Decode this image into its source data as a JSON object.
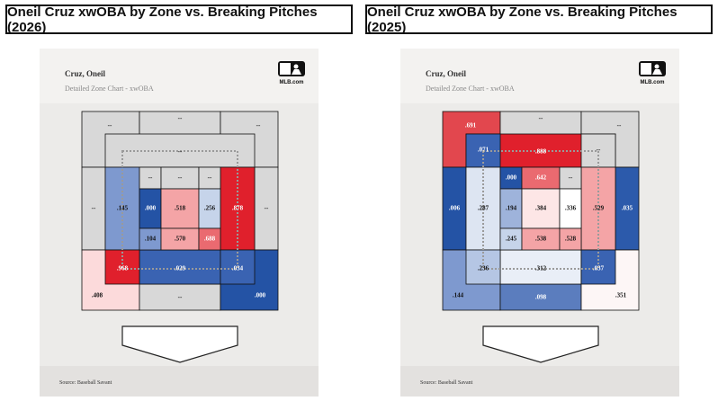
{
  "source": "Source: Baseball Savant",
  "logo_text": "MLB.com",
  "charts": [
    {
      "title": "Oneil Cruz xwOBA by Zone vs. Breaking Pitches (2026)",
      "player": "Cruz, Oneil",
      "subtitle": "Detailed Zone Chart - xwOBA",
      "cells": [
        {
          "zone": "tl-outer",
          "value": "--",
          "color": "#d8d8d8"
        },
        {
          "zone": "top-outer",
          "value": "--",
          "color": "#d8d8d8"
        },
        {
          "zone": "tr-outer",
          "value": "--",
          "color": "#d8d8d8"
        },
        {
          "zone": "left-outer",
          "value": "--",
          "color": "#d8d8d8"
        },
        {
          "zone": "right-outer",
          "value": "--",
          "color": "#d8d8d8"
        },
        {
          "zone": "bl-outer",
          "value": ".408",
          "color": "#fcdadb"
        },
        {
          "zone": "bottom-outer",
          "value": "--",
          "color": "#d8d8d8"
        },
        {
          "zone": "br-outer",
          "value": ".000",
          "color": "#2453a5"
        },
        {
          "zone": "shadow-top",
          "value": "--",
          "color": "#d8d8d8"
        },
        {
          "zone": "shadow-left",
          "value": ".145",
          "color": "#7e99cf"
        },
        {
          "zone": "shadow-right",
          "value": ".878",
          "color": "#e0202c"
        },
        {
          "zone": "shadow-bottom",
          "value": ".029",
          "color": "#3a63b2"
        },
        {
          "zone": "shadow-bl",
          "value": ".968",
          "color": "#e0202c"
        },
        {
          "zone": "shadow-br",
          "value": ".034",
          "color": "#3a63b2"
        },
        {
          "zone": "heart-1",
          "value": "--",
          "color": "#d8d8d8"
        },
        {
          "zone": "heart-2",
          "value": "--",
          "color": "#d8d8d8"
        },
        {
          "zone": "heart-3",
          "value": "--",
          "color": "#d8d8d8"
        },
        {
          "zone": "heart-4",
          "value": ".000",
          "color": "#2453a5"
        },
        {
          "zone": "heart-5",
          "value": ".518",
          "color": "#f4a4a6"
        },
        {
          "zone": "heart-6",
          "value": ".256",
          "color": "#c6d4ea"
        },
        {
          "zone": "heart-7",
          "value": ".104",
          "color": "#7e99cf"
        },
        {
          "zone": "heart-8",
          "value": ".570",
          "color": "#f4a4a6"
        },
        {
          "zone": "heart-9",
          "value": ".688",
          "color": "#ea6a70"
        }
      ]
    },
    {
      "title": "Oneil Cruz xwOBA by Zone vs. Breaking Pitches (2025)",
      "player": "Cruz, Oneil",
      "subtitle": "Detailed Zone Chart - xwOBA",
      "cells": [
        {
          "zone": "tl-outer",
          "value": ".691",
          "color": "#e2474e"
        },
        {
          "zone": "top-outer",
          "value": "--",
          "color": "#d8d8d8"
        },
        {
          "zone": "tr-outer",
          "value": "--",
          "color": "#d8d8d8"
        },
        {
          "zone": "left-outer",
          "value": ".006",
          "color": "#2453a5"
        },
        {
          "zone": "right-outer",
          "value": ".035",
          "color": "#2c5aab"
        },
        {
          "zone": "bl-outer",
          "value": ".144",
          "color": "#7e99cf"
        },
        {
          "zone": "bottom-outer",
          "value": ".098",
          "color": "#5b7dbe"
        },
        {
          "zone": "br-outer",
          "value": ".351",
          "color": "#fdf6f6"
        },
        {
          "zone": "shadow-top",
          "value": ".888",
          "color": "#e0202c"
        },
        {
          "zone": "shadow-tl",
          "value": ".071",
          "color": "#3a63b2"
        },
        {
          "zone": "shadow-tr",
          "value": "--",
          "color": "#d8d8d8"
        },
        {
          "zone": "shadow-left",
          "value": ".287",
          "color": "#dde5f2"
        },
        {
          "zone": "shadow-right",
          "value": ".529",
          "color": "#f4a4a6"
        },
        {
          "zone": "shadow-bottom",
          "value": ".312",
          "color": "#e9eef7"
        },
        {
          "zone": "shadow-bl",
          "value": ".236",
          "color": "#b5c6e4"
        },
        {
          "zone": "shadow-br",
          "value": ".037",
          "color": "#3a63b2"
        },
        {
          "zone": "heart-1",
          "value": ".000",
          "color": "#2453a5"
        },
        {
          "zone": "heart-2",
          "value": ".642",
          "color": "#ea6a70"
        },
        {
          "zone": "heart-3",
          "value": "--",
          "color": "#d8d8d8"
        },
        {
          "zone": "heart-4",
          "value": ".194",
          "color": "#9eb3db"
        },
        {
          "zone": "heart-5",
          "value": ".384",
          "color": "#fde6e6"
        },
        {
          "zone": "heart-6",
          "value": ".336",
          "color": "#ffffff"
        },
        {
          "zone": "heart-7",
          "value": ".245",
          "color": "#c6d4ea"
        },
        {
          "zone": "heart-8",
          "value": ".538",
          "color": "#f4a4a6"
        },
        {
          "zone": "heart-9",
          "value": ".528",
          "color": "#f4a4a6"
        }
      ]
    }
  ]
}
